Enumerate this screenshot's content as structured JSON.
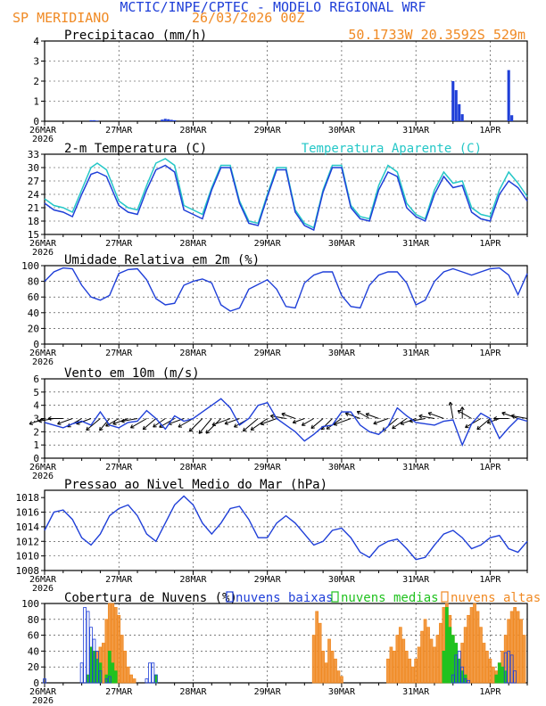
{
  "header": {
    "line1": "MCTIC/INPE/CPTEC - MODELO REGIONAL WRF",
    "location": "SP MERIDIANO",
    "run": "26/03/2026 00Z",
    "coords": "50.1733W 20.3592S 529m"
  },
  "colors": {
    "blue": "#1f3fd8",
    "orange": "#f08a24",
    "cyan": "#25c7c7",
    "green": "#21c21f",
    "black": "#000000"
  },
  "x_axis": {
    "start_label": "26MAR",
    "year": "2026",
    "day_labels": [
      "27MAR",
      "28MAR",
      "29MAR",
      "30MAR",
      "31MAR",
      "1APR"
    ],
    "hours_total": 156
  },
  "chart_data": [
    {
      "type": "bar",
      "id": "precip",
      "title": "Precipitacao (mm/h)",
      "ylim": [
        0,
        4
      ],
      "yticks": [
        0,
        1,
        2,
        3,
        4
      ],
      "hours": [
        15,
        16,
        17,
        38,
        39,
        40,
        41,
        42,
        132,
        133,
        134,
        135,
        150,
        151
      ],
      "values": [
        0.05,
        0.05,
        0.03,
        0.08,
        0.12,
        0.1,
        0.07,
        0.05,
        2.0,
        1.55,
        0.85,
        0.35,
        2.55,
        0.3
      ]
    },
    {
      "type": "line",
      "id": "temp",
      "title": "2-m Temperatura (C)",
      "legend": "Temperatura Aparente (C)",
      "ylim": [
        15,
        33
      ],
      "yticks": [
        15,
        18,
        21,
        24,
        27,
        30,
        33
      ],
      "series": [
        {
          "name": "2-m Temperatura (C)",
          "hours": [
            0,
            3,
            6,
            9,
            12,
            15,
            17,
            20,
            24,
            27,
            30,
            33,
            36,
            39,
            42,
            45,
            48,
            51,
            54,
            57,
            60,
            63,
            66,
            69,
            72,
            75,
            78,
            81,
            84,
            87,
            90,
            93,
            96,
            99,
            102,
            105,
            108,
            111,
            114,
            117,
            120,
            123,
            126,
            129,
            132,
            135,
            138,
            141,
            144,
            147,
            150,
            153,
            156
          ],
          "values": [
            22,
            20.5,
            20,
            19,
            24,
            28.5,
            29,
            28,
            21.5,
            20,
            19.5,
            25,
            29.5,
            30.5,
            29,
            20.5,
            19.5,
            18.5,
            25,
            30,
            30,
            22,
            17.5,
            17,
            23.5,
            29.5,
            29.5,
            20,
            17,
            16,
            24.5,
            30,
            30,
            21,
            18.5,
            18,
            25,
            29,
            28,
            21,
            19,
            18,
            24,
            28,
            25.5,
            26,
            20,
            18.5,
            18,
            24,
            27,
            25.5,
            22.5
          ]
        },
        {
          "name": "Temperatura Aparente (C)",
          "hours": [
            0,
            3,
            6,
            9,
            12,
            15,
            17,
            20,
            24,
            27,
            30,
            33,
            36,
            39,
            42,
            45,
            48,
            51,
            54,
            57,
            60,
            63,
            66,
            69,
            72,
            75,
            78,
            81,
            84,
            87,
            90,
            93,
            96,
            99,
            102,
            105,
            108,
            111,
            114,
            117,
            120,
            123,
            126,
            129,
            132,
            135,
            138,
            141,
            144,
            147,
            150,
            153,
            156
          ],
          "values": [
            23,
            21.5,
            21,
            20,
            25,
            30,
            31,
            29.5,
            22.5,
            21,
            20.5,
            26,
            31,
            32,
            30.5,
            21.5,
            20.5,
            19.5,
            25.5,
            30.5,
            30.5,
            22.5,
            18,
            17.5,
            24,
            30,
            30,
            20.5,
            17.5,
            16.5,
            25,
            30.5,
            30.5,
            21.5,
            19,
            18.5,
            26,
            30.5,
            29,
            22,
            19.5,
            18.5,
            25,
            29,
            26.5,
            27,
            21,
            19.5,
            19,
            25,
            29,
            26.5,
            23.5
          ]
        }
      ]
    },
    {
      "type": "line",
      "id": "rh",
      "title": "Umidade Relativa em 2m (%)",
      "ylim": [
        0,
        100
      ],
      "yticks": [
        0,
        20,
        40,
        60,
        80,
        100
      ],
      "hours": [
        0,
        3,
        6,
        9,
        12,
        15,
        18,
        21,
        24,
        27,
        30,
        33,
        36,
        39,
        42,
        45,
        48,
        51,
        54,
        57,
        60,
        63,
        66,
        69,
        72,
        75,
        78,
        81,
        84,
        87,
        90,
        93,
        96,
        99,
        102,
        105,
        108,
        111,
        114,
        117,
        120,
        123,
        126,
        129,
        132,
        135,
        138,
        141,
        144,
        147,
        150,
        153,
        156
      ],
      "values": [
        80,
        92,
        97,
        96,
        75,
        60,
        56,
        62,
        90,
        95,
        96,
        82,
        58,
        50,
        52,
        75,
        80,
        83,
        78,
        50,
        42,
        46,
        70,
        76,
        82,
        70,
        48,
        46,
        78,
        88,
        92,
        92,
        62,
        48,
        46,
        75,
        88,
        92,
        92,
        78,
        50,
        56,
        80,
        92,
        96,
        92,
        88,
        92,
        96,
        97,
        88,
        63,
        90
      ]
    },
    {
      "type": "line",
      "id": "wind",
      "title": "Vento em 10m (m/s)",
      "ylim": [
        0,
        6
      ],
      "yticks": [
        0,
        1,
        2,
        3,
        4,
        5,
        6
      ],
      "hours": [
        0,
        3,
        6,
        9,
        12,
        15,
        18,
        21,
        24,
        27,
        30,
        33,
        36,
        39,
        42,
        45,
        48,
        51,
        54,
        57,
        60,
        63,
        66,
        69,
        72,
        75,
        78,
        81,
        84,
        87,
        90,
        93,
        96,
        99,
        102,
        105,
        108,
        111,
        114,
        117,
        120,
        123,
        126,
        129,
        132,
        135,
        138,
        141,
        144,
        147,
        150,
        153,
        156
      ],
      "values": [
        2.7,
        2.5,
        2.3,
        2.6,
        2.8,
        2.5,
        3.5,
        2.5,
        2.3,
        2.7,
        2.8,
        3.6,
        3.0,
        2.2,
        3.2,
        2.8,
        3.0,
        3.5,
        4.0,
        4.5,
        3.8,
        2.5,
        3.0,
        4.0,
        4.2,
        3.0,
        2.5,
        2.0,
        1.3,
        1.8,
        2.4,
        2.5,
        3.5,
        3.5,
        2.5,
        2.0,
        1.8,
        2.4,
        3.8,
        3.2,
        2.7,
        2.6,
        2.5,
        2.8,
        2.9,
        1.0,
        2.6,
        3.4,
        3.0,
        1.5,
        2.3,
        3.0,
        2.8
      ],
      "barb_angles": [
        200,
        190,
        180,
        200,
        210,
        200,
        220,
        230,
        210,
        200,
        190,
        210,
        220,
        215,
        210,
        200,
        210,
        225,
        230,
        225,
        200,
        200,
        210,
        220,
        215,
        200,
        170,
        160,
        200,
        210,
        220,
        225,
        215,
        200,
        160,
        150,
        160,
        200,
        220,
        215,
        200,
        190,
        170,
        160,
        100,
        90,
        150,
        210,
        220,
        200,
        180,
        160,
        170
      ]
    },
    {
      "type": "line",
      "id": "pres",
      "title": "Pressao ao Nivel Medio do Mar (hPa)",
      "ylim": [
        1008,
        1019
      ],
      "yticks": [
        1008,
        1010,
        1012,
        1014,
        1016,
        1018
      ],
      "hours": [
        0,
        3,
        6,
        9,
        12,
        15,
        18,
        21,
        24,
        27,
        30,
        33,
        36,
        39,
        42,
        45,
        48,
        51,
        54,
        57,
        60,
        63,
        66,
        69,
        72,
        75,
        78,
        81,
        84,
        87,
        90,
        93,
        96,
        99,
        102,
        105,
        108,
        111,
        114,
        117,
        120,
        123,
        126,
        129,
        132,
        135,
        138,
        141,
        144,
        147,
        150,
        153,
        156
      ],
      "values": [
        1013.5,
        1016,
        1016.3,
        1015,
        1012.5,
        1011.5,
        1013,
        1015.5,
        1016.5,
        1017,
        1015.5,
        1013,
        1012,
        1014.5,
        1017,
        1018.2,
        1017,
        1014.5,
        1013,
        1014.5,
        1016.5,
        1016.8,
        1015,
        1012.5,
        1012.5,
        1014.5,
        1015.5,
        1014.5,
        1013,
        1011.5,
        1012,
        1013.5,
        1013.8,
        1012.5,
        1010.5,
        1009.8,
        1011.3,
        1012,
        1012.3,
        1011,
        1009.5,
        1009.8,
        1011.5,
        1013,
        1013.5,
        1012.5,
        1011,
        1011.5,
        1012.5,
        1012.8,
        1011,
        1010.5,
        1012
      ]
    },
    {
      "type": "bar",
      "id": "clouds",
      "title": "Cobertura de Nuvens (%)",
      "ylim": [
        0,
        100
      ],
      "yticks": [
        0,
        20,
        40,
        60,
        80,
        100
      ],
      "legend": [
        "nuvens baixas",
        "nuvens medias",
        "nuvens altas"
      ],
      "series": [
        {
          "name": "nuvens baixas",
          "hours": [
            0,
            12,
            13,
            14,
            15,
            16,
            17,
            18,
            20,
            21,
            33,
            34,
            35,
            36,
            132,
            133,
            134,
            135,
            136,
            137,
            149,
            150,
            151,
            152
          ],
          "values": [
            5,
            25,
            95,
            90,
            70,
            55,
            40,
            15,
            5,
            8,
            5,
            25,
            25,
            10,
            10,
            35,
            40,
            20,
            5,
            3,
            38,
            40,
            35,
            15
          ]
        },
        {
          "name": "nuvens medias",
          "hours": [
            14,
            15,
            16,
            17,
            18,
            20,
            21,
            22,
            23,
            36,
            129,
            130,
            131,
            132,
            133,
            134,
            135,
            136,
            146,
            147,
            148,
            149
          ],
          "values": [
            10,
            45,
            40,
            30,
            25,
            10,
            40,
            25,
            15,
            10,
            40,
            95,
            70,
            60,
            50,
            30,
            15,
            10,
            10,
            25,
            20,
            15
          ]
        },
        {
          "name": "nuvens altas",
          "hours": [
            15,
            16,
            17,
            18,
            19,
            20,
            21,
            22,
            23,
            24,
            25,
            26,
            27,
            28,
            29,
            87,
            88,
            89,
            90,
            91,
            92,
            93,
            94,
            95,
            96,
            111,
            112,
            113,
            114,
            115,
            116,
            117,
            118,
            119,
            120,
            121,
            122,
            123,
            124,
            125,
            126,
            127,
            128,
            129,
            130,
            131,
            132,
            133,
            134,
            135,
            136,
            137,
            138,
            139,
            140,
            141,
            142,
            143,
            144,
            145,
            146,
            147,
            148,
            149,
            150,
            151,
            152,
            153,
            154,
            155
          ],
          "values": [
            20,
            30,
            40,
            45,
            50,
            80,
            100,
            100,
            95,
            85,
            60,
            40,
            20,
            10,
            5,
            60,
            90,
            75,
            40,
            25,
            55,
            40,
            30,
            15,
            8,
            30,
            45,
            40,
            60,
            70,
            55,
            40,
            30,
            20,
            30,
            45,
            65,
            80,
            70,
            55,
            45,
            60,
            75,
            95,
            100,
            85,
            60,
            40,
            30,
            50,
            70,
            85,
            95,
            100,
            90,
            70,
            50,
            40,
            30,
            20,
            15,
            25,
            40,
            60,
            80,
            90,
            95,
            90,
            80,
            60
          ]
        }
      ]
    }
  ]
}
